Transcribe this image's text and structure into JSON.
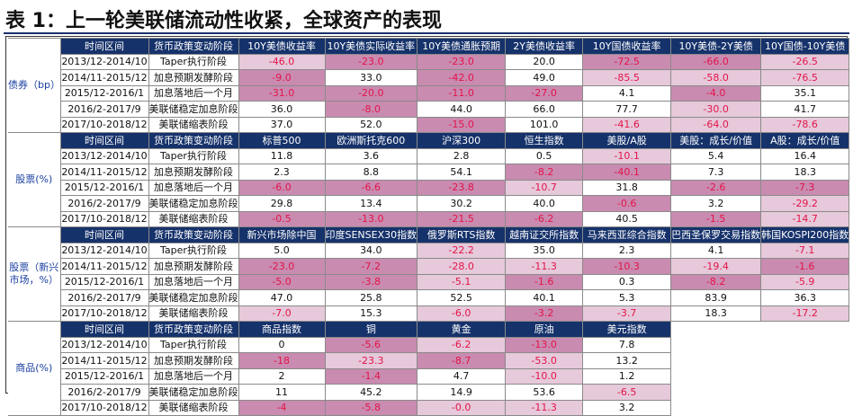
{
  "title": "表 1：上一轮美联储流动性收紧，全球资产的表现",
  "colors": {
    "header": "#16326b",
    "negative_fill": "#c98bb0",
    "negative_light": "#e6c9da",
    "negative_text": "#e3144a"
  },
  "periods": [
    "2013/12-2014/10",
    "2014/11-2015/12",
    "2015/12-2016/1",
    "2016/2-2017/9",
    "2017/10-2018/12"
  ],
  "policies": [
    "Taper执行阶段",
    "加息预期发酵阶段",
    "加息落地后一个月",
    "美联储稳定加息阶段",
    "美联储缩表阶段"
  ],
  "sections": [
    {
      "group": "债券（bp）",
      "headers": [
        "时间区间",
        "货币政策变动阶段",
        "10Y美债收益率",
        "10Y美债实际收益率",
        "10Y美债通胀预期",
        "2Y美债收益率",
        "10Y国债收益率",
        "10Y美债-2Y美债",
        "10Y国债-10Y美债"
      ],
      "rows": [
        [
          "-46.0",
          "-23.0",
          "-23.0",
          "20.0",
          "-72.5",
          "-66.0",
          "-26.5"
        ],
        [
          "-9.0",
          "33.0",
          "-42.0",
          "49.0",
          "-85.5",
          "-58.0",
          "-76.5"
        ],
        [
          "-31.0",
          "-20.0",
          "-11.0",
          "-27.0",
          "4.1",
          "-4.0",
          "35.1"
        ],
        [
          "36.0",
          "-8.0",
          "44.0",
          "66.0",
          "77.7",
          "-30.0",
          "41.7"
        ],
        [
          "37.0",
          "52.0",
          "-15.0",
          "101.0",
          "-41.6",
          "-64.0",
          "-78.6"
        ]
      ]
    },
    {
      "group": "股票(%)",
      "headers": [
        "时间区间",
        "货币政策变动阶段",
        "标普500",
        "欧洲斯托克600",
        "沪深300",
        "恒生指数",
        "美股/A股",
        "美股：成长/价值",
        "A股：成长/价值"
      ],
      "rows": [
        [
          "11.8",
          "3.6",
          "2.8",
          "0.5",
          "-10.1",
          "5.4",
          "16.4"
        ],
        [
          "2.3",
          "8.8",
          "54.1",
          "-8.2",
          "-40.1",
          "7.3",
          "18.3"
        ],
        [
          "-6.0",
          "-6.6",
          "-23.8",
          "-10.7",
          "31.8",
          "-2.6",
          "-7.3"
        ],
        [
          "29.8",
          "13.4",
          "30.2",
          "40.0",
          "-0.6",
          "3.2",
          "-29.2"
        ],
        [
          "-0.5",
          "-13.0",
          "-21.5",
          "-6.2",
          "40.5",
          "-1.5",
          "-14.7"
        ]
      ]
    },
    {
      "group": "股票（新兴市场，%）",
      "headers": [
        "时间区间",
        "货币政策变动阶段",
        "新兴市场除中国",
        "印度SENSEX30指数",
        "俄罗斯RTS指数",
        "越南证交所指数",
        "马来西亚综合指数",
        "巴西圣保罗交易指数",
        "韩国KOSPI200指数"
      ],
      "rows": [
        [
          "5.0",
          "34.0",
          "-22.2",
          "35.0",
          "2.3",
          "4.1",
          "-7.1"
        ],
        [
          "-23.0",
          "-7.2",
          "-28.0",
          "-11.3",
          "-10.3",
          "-19.4",
          "-1.6"
        ],
        [
          "-5.0",
          "-3.8",
          "-5.1",
          "-1.6",
          "0.3",
          "-8.2",
          "-5.9"
        ],
        [
          "47.0",
          "25.8",
          "52.5",
          "40.1",
          "5.3",
          "83.9",
          "36.3"
        ],
        [
          "-7.0",
          "15.3",
          "-6.0",
          "-3.2",
          "-3.7",
          "18.3",
          "-17.2"
        ]
      ]
    },
    {
      "group": "商品(%)",
      "headers": [
        "时间区间",
        "货币政策变动阶段",
        "商品指数",
        "铜",
        "黄金",
        "原油",
        "美元指数"
      ],
      "rows": [
        [
          "0",
          "-5.6",
          "-6.2",
          "-13.0",
          "7.8"
        ],
        [
          "-18",
          "-23.3",
          "-8.7",
          "-53.0",
          "13.2"
        ],
        [
          "2",
          "-1.4",
          "4.7",
          "-10.0",
          "1.2"
        ],
        [
          "11",
          "45.2",
          "14.9",
          "53.6",
          "-6.5"
        ],
        [
          "-4",
          "-5.8",
          "-0.0",
          "-11.3",
          "3.2"
        ]
      ]
    }
  ],
  "strong_cells": {
    "0": [
      [
        0,
        0
      ],
      [
        0,
        6
      ],
      [
        1,
        4
      ],
      [
        1,
        5
      ],
      [
        1,
        6
      ],
      [
        3,
        5
      ],
      [
        4,
        4
      ],
      [
        4,
        5
      ],
      [
        4,
        6
      ]
    ],
    "1": [
      [
        0,
        4
      ],
      [
        2,
        3
      ],
      [
        3,
        6
      ],
      [
        4,
        6
      ]
    ],
    "2": [
      [
        0,
        2
      ],
      [
        0,
        6
      ],
      [
        1,
        2
      ],
      [
        1,
        3
      ],
      [
        1,
        5
      ],
      [
        2,
        2
      ],
      [
        2,
        6
      ],
      [
        3,
        2
      ],
      [
        4,
        0
      ],
      [
        4,
        2
      ],
      [
        4,
        4
      ],
      [
        4,
        6
      ]
    ],
    "3": [
      [
        0,
        2
      ],
      [
        1,
        1
      ],
      [
        1,
        3
      ],
      [
        2,
        3
      ],
      [
        3,
        4
      ],
      [
        4,
        2
      ],
      [
        4,
        3
      ]
    ]
  }
}
